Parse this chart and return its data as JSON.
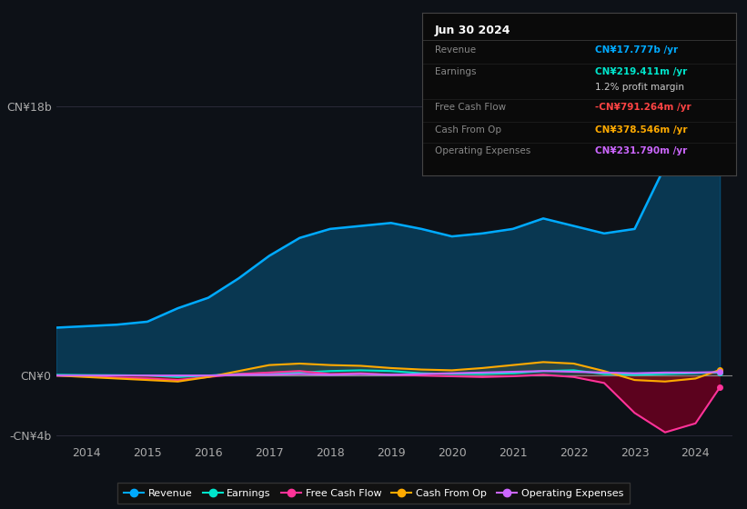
{
  "bg_color": "#0d1117",
  "plot_bg_color": "#0d1117",
  "title": "Jun 30 2024",
  "info_box_rows": [
    {
      "label": "Revenue",
      "value": "CN¥17.777b /yr",
      "value_color": "#00aaff"
    },
    {
      "label": "Earnings",
      "value": "CN¥219.411m /yr",
      "value_color": "#00e5cc"
    },
    {
      "label": "",
      "value": "1.2% profit margin",
      "value_color": "#cccccc"
    },
    {
      "label": "Free Cash Flow",
      "value": "-CN¥791.264m /yr",
      "value_color": "#ff4444"
    },
    {
      "label": "Cash From Op",
      "value": "CN¥378.546m /yr",
      "value_color": "#ffaa00"
    },
    {
      "label": "Operating Expenses",
      "value": "CN¥231.790m /yr",
      "value_color": "#cc66ff"
    }
  ],
  "years": [
    2013.5,
    2014.0,
    2014.5,
    2015.0,
    2015.5,
    2016.0,
    2016.5,
    2017.0,
    2017.5,
    2018.0,
    2018.5,
    2019.0,
    2019.5,
    2020.0,
    2020.5,
    2021.0,
    2021.5,
    2022.0,
    2022.5,
    2023.0,
    2023.5,
    2024.0,
    2024.4
  ],
  "revenue": [
    3.2,
    3.3,
    3.4,
    3.6,
    4.5,
    5.2,
    6.5,
    8.0,
    9.2,
    9.8,
    10.0,
    10.2,
    9.8,
    9.3,
    9.5,
    9.8,
    10.5,
    10.0,
    9.5,
    9.8,
    14.0,
    17.0,
    17.777
  ],
  "earnings": [
    0.05,
    0.03,
    0.02,
    0.0,
    -0.1,
    0.0,
    0.1,
    0.15,
    0.2,
    0.3,
    0.35,
    0.3,
    0.15,
    0.1,
    0.1,
    0.15,
    0.3,
    0.35,
    0.1,
    0.05,
    0.1,
    0.15,
    0.219
  ],
  "free_cash_flow": [
    0.0,
    -0.05,
    -0.15,
    -0.2,
    -0.3,
    -0.1,
    0.1,
    0.2,
    0.3,
    0.1,
    0.15,
    0.05,
    0.0,
    -0.05,
    -0.1,
    -0.05,
    0.05,
    -0.1,
    -0.5,
    -2.5,
    -3.8,
    -3.2,
    -0.791
  ],
  "cash_from_op": [
    0.0,
    -0.1,
    -0.2,
    -0.3,
    -0.4,
    -0.1,
    0.3,
    0.7,
    0.8,
    0.7,
    0.65,
    0.5,
    0.4,
    0.35,
    0.5,
    0.7,
    0.9,
    0.8,
    0.3,
    -0.3,
    -0.4,
    -0.2,
    0.379
  ],
  "op_expenses": [
    0.0,
    0.0,
    0.0,
    0.0,
    0.0,
    0.0,
    0.05,
    0.05,
    0.1,
    0.05,
    0.1,
    0.05,
    0.1,
    0.15,
    0.2,
    0.25,
    0.3,
    0.25,
    0.2,
    0.15,
    0.2,
    0.2,
    0.232
  ],
  "ylim": [
    -4.5,
    20
  ],
  "yticks": [
    -4,
    0,
    18
  ],
  "ytick_labels": [
    "-CN¥4b",
    "CN¥0",
    "CN¥18b"
  ],
  "xticks": [
    2014,
    2015,
    2016,
    2017,
    2018,
    2019,
    2020,
    2021,
    2022,
    2023,
    2024
  ],
  "revenue_color": "#00aaff",
  "earnings_color": "#00e5cc",
  "fcf_color": "#ff3399",
  "cash_op_color": "#ffaa00",
  "op_exp_color": "#cc66ff",
  "grid_color": "#2a2a3a",
  "text_color": "#aaaaaa",
  "zero_line_color": "#888888"
}
